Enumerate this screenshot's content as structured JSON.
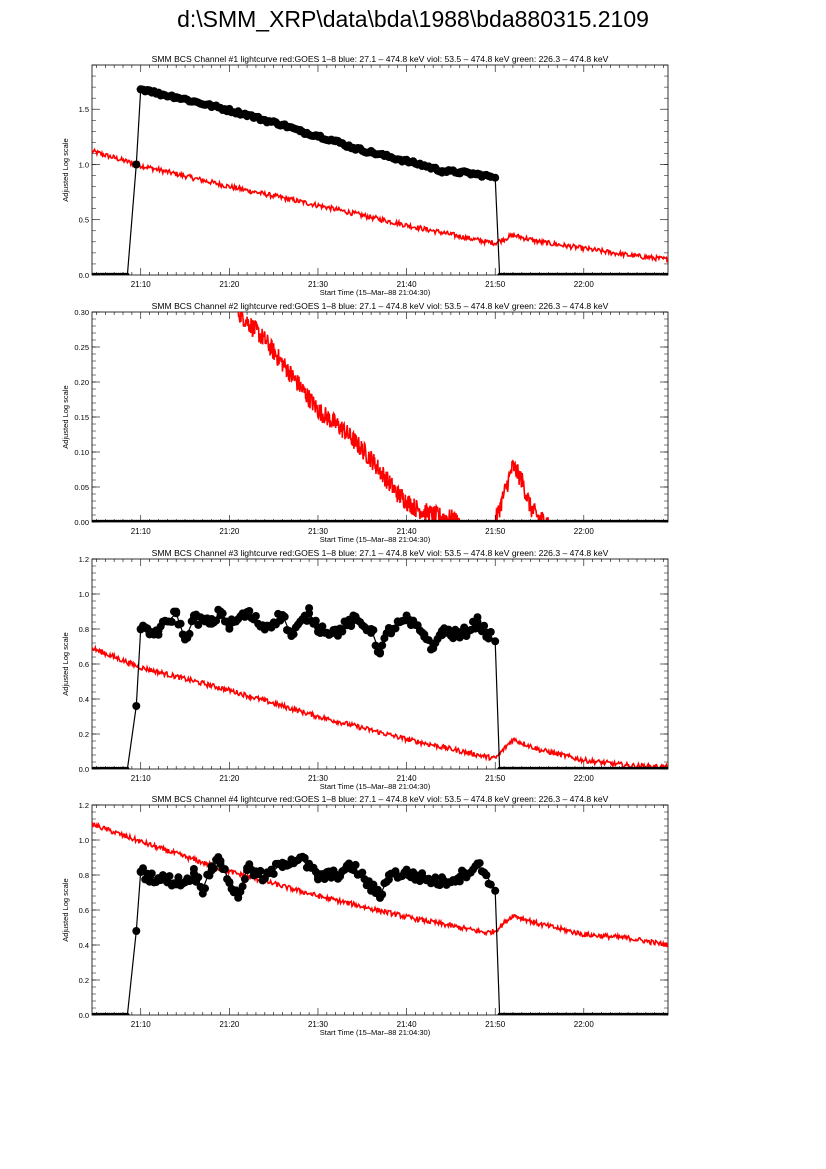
{
  "page": {
    "title": "d:\\SMM_XRP\\data\\bda\\1988\\bda880315.2109"
  },
  "colors": {
    "goes": "#ff0000",
    "bcs": "#000000",
    "axes": "#000000"
  },
  "chart_data": [
    {
      "type": "line",
      "title": "SMM BCS Channel #1 lightcurve  red:GOES 1–8  blue: 27.1 – 474.8 keV  viol: 53.5 – 474.8 keV  green: 226.3 – 474.8 keV",
      "xlabel": "Start Time (15–Mar–88 21:04:30)",
      "ylabel": "Adjusted Log scale",
      "xlim": [
        "21:04:30",
        "22:09:30"
      ],
      "ylim": [
        0,
        1.9
      ],
      "xticks": [
        "21:10",
        "21:20",
        "21:30",
        "21:40",
        "21:50",
        "22:00"
      ],
      "yticks": [
        "0.0",
        "0.5",
        "1.0",
        "1.5"
      ],
      "grid": false,
      "series": [
        {
          "values": [
            {
              "t": "21:04:30",
              "v": 0
            },
            {
              "t": "21:08:30",
              "v": 0
            },
            {
              "t": "21:09:30",
              "v": 1.0
            },
            {
              "t": "21:10:00",
              "v": 1.68
            },
            {
              "t": "21:11:00",
              "v": 1.67
            },
            {
              "t": "21:12:00",
              "v": 1.64
            },
            {
              "t": "21:14:00",
              "v": 1.61
            },
            {
              "t": "21:16:00",
              "v": 1.57
            },
            {
              "t": "21:18:00",
              "v": 1.53
            },
            {
              "t": "21:20:00",
              "v": 1.49
            },
            {
              "t": "21:22:00",
              "v": 1.45
            },
            {
              "t": "21:24:00",
              "v": 1.4
            },
            {
              "t": "21:26:00",
              "v": 1.36
            },
            {
              "t": "21:28:00",
              "v": 1.3
            },
            {
              "t": "21:30:00",
              "v": 1.26
            },
            {
              "t": "21:32:00",
              "v": 1.21
            },
            {
              "t": "21:34:00",
              "v": 1.15
            },
            {
              "t": "21:36:00",
              "v": 1.11
            },
            {
              "t": "21:38:00",
              "v": 1.07
            },
            {
              "t": "21:40:00",
              "v": 1.03
            },
            {
              "t": "21:42:00",
              "v": 0.99
            },
            {
              "t": "21:44:00",
              "v": 0.94
            },
            {
              "t": "21:46:00",
              "v": 0.93
            },
            {
              "t": "21:48:00",
              "v": 0.91
            },
            {
              "t": "21:49:30",
              "v": 0.89
            },
            {
              "t": "21:50:00",
              "v": 0.88
            },
            {
              "t": "21:50:30",
              "v": 0
            },
            {
              "t": "22:09:30",
              "v": 0
            }
          ]
        },
        {
          "values": [
            {
              "t": "21:04:30",
              "v": 1.12
            },
            {
              "t": "21:10:00",
              "v": 0.99
            },
            {
              "t": "21:20:00",
              "v": 0.8
            },
            {
              "t": "21:30:00",
              "v": 0.63
            },
            {
              "t": "21:40:00",
              "v": 0.45
            },
            {
              "t": "21:49:00",
              "v": 0.3
            },
            {
              "t": "21:50:00",
              "v": 0.29
            },
            {
              "t": "21:52:00",
              "v": 0.36
            },
            {
              "t": "21:55:00",
              "v": 0.3
            },
            {
              "t": "22:00:00",
              "v": 0.24
            },
            {
              "t": "22:05:00",
              "v": 0.18
            },
            {
              "t": "22:09:30",
              "v": 0.14
            }
          ]
        }
      ]
    },
    {
      "type": "line",
      "title": "SMM BCS Channel #2 lightcurve  red:GOES 1–8  blue: 27.1 – 474.8 keV  viol: 53.5 – 474.8 keV  green: 226.3 – 474.8 keV",
      "xlabel": "Start Time (15–Mar–88 21:04:30)",
      "ylabel": "Adjusted Log scale",
      "xlim": [
        "21:04:30",
        "22:09:30"
      ],
      "ylim": [
        0,
        0.3
      ],
      "xticks": [
        "21:10",
        "21:20",
        "21:30",
        "21:40",
        "21:50",
        "22:00"
      ],
      "yticks": [
        "0.00",
        "0.05",
        "0.10",
        "0.15",
        "0.20",
        "0.25",
        "0.30"
      ],
      "grid": false,
      "series": [
        {
          "values": [
            {
              "t": "21:04:30",
              "v": 0
            },
            {
              "t": "22:09:30",
              "v": 0
            }
          ]
        },
        {
          "values": [
            {
              "t": "21:21:00",
              "v": 0.3
            },
            {
              "t": "21:24:00",
              "v": 0.26
            },
            {
              "t": "21:27:00",
              "v": 0.21
            },
            {
              "t": "21:30:00",
              "v": 0.16
            },
            {
              "t": "21:33:00",
              "v": 0.13
            },
            {
              "t": "21:36:00",
              "v": 0.09
            },
            {
              "t": "21:39:00",
              "v": 0.04
            },
            {
              "t": "21:41:00",
              "v": 0.02
            },
            {
              "t": "21:43:00",
              "v": 0.01
            },
            {
              "t": "21:45:00",
              "v": 0.005
            },
            {
              "t": "21:46:00",
              "v": 0
            },
            {
              "t": "21:50:00",
              "v": 0
            },
            {
              "t": "21:51:00",
              "v": 0.04
            },
            {
              "t": "21:52:00",
              "v": 0.08
            },
            {
              "t": "21:53:00",
              "v": 0.06
            },
            {
              "t": "21:54:00",
              "v": 0.02
            },
            {
              "t": "21:55:00",
              "v": 0.005
            },
            {
              "t": "21:56:00",
              "v": 0
            }
          ]
        }
      ]
    },
    {
      "type": "line",
      "title": "SMM BCS Channel #3 lightcurve  red:GOES 1–8  blue: 27.1 – 474.8 keV  viol: 53.5 – 474.8 keV  green: 226.3 – 474.8 keV",
      "xlabel": "Start Time (15–Mar–88 21:04:30)",
      "ylabel": "Adjusted Log scale",
      "xlim": [
        "21:04:30",
        "22:09:30"
      ],
      "ylim": [
        0,
        1.2
      ],
      "xticks": [
        "21:10",
        "21:20",
        "21:30",
        "21:40",
        "21:50",
        "22:00"
      ],
      "yticks": [
        "0.0",
        "0.2",
        "0.4",
        "0.6",
        "0.8",
        "1.0",
        "1.2"
      ],
      "grid": false,
      "series": [
        {
          "values": [
            {
              "t": "21:04:30",
              "v": 0
            },
            {
              "t": "21:08:30",
              "v": 0
            },
            {
              "t": "21:09:30",
              "v": 0.36
            },
            {
              "t": "21:10:00",
              "v": 0.8
            },
            {
              "t": "21:11:00",
              "v": 0.77
            },
            {
              "t": "21:12:00",
              "v": 0.79
            },
            {
              "t": "21:14:00",
              "v": 0.89
            },
            {
              "t": "21:15:00",
              "v": 0.74
            },
            {
              "t": "21:16:00",
              "v": 0.86
            },
            {
              "t": "21:18:00",
              "v": 0.83
            },
            {
              "t": "21:19:00",
              "v": 0.9
            },
            {
              "t": "21:20:00",
              "v": 0.82
            },
            {
              "t": "21:22:00",
              "v": 0.89
            },
            {
              "t": "21:24:00",
              "v": 0.81
            },
            {
              "t": "21:26:00",
              "v": 0.88
            },
            {
              "t": "21:27:00",
              "v": 0.76
            },
            {
              "t": "21:29:00",
              "v": 0.89
            },
            {
              "t": "21:30:00",
              "v": 0.81
            },
            {
              "t": "21:32:00",
              "v": 0.78
            },
            {
              "t": "21:34:00",
              "v": 0.85
            },
            {
              "t": "21:36:00",
              "v": 0.8
            },
            {
              "t": "21:37:00",
              "v": 0.66
            },
            {
              "t": "21:38:00",
              "v": 0.79
            },
            {
              "t": "21:40:00",
              "v": 0.85
            },
            {
              "t": "21:42:00",
              "v": 0.77
            },
            {
              "t": "21:43:00",
              "v": 0.69
            },
            {
              "t": "21:44:00",
              "v": 0.79
            },
            {
              "t": "21:46:00",
              "v": 0.76
            },
            {
              "t": "21:48:00",
              "v": 0.84
            },
            {
              "t": "21:49:00",
              "v": 0.78
            },
            {
              "t": "21:50:00",
              "v": 0.73
            },
            {
              "t": "21:50:30",
              "v": 0
            },
            {
              "t": "22:09:30",
              "v": 0
            }
          ]
        },
        {
          "values": [
            {
              "t": "21:04:30",
              "v": 0.69
            },
            {
              "t": "21:10:00",
              "v": 0.58
            },
            {
              "t": "21:20:00",
              "v": 0.45
            },
            {
              "t": "21:30:00",
              "v": 0.3
            },
            {
              "t": "21:40:00",
              "v": 0.17
            },
            {
              "t": "21:49:00",
              "v": 0.07
            },
            {
              "t": "21:50:00",
              "v": 0.06
            },
            {
              "t": "21:52:00",
              "v": 0.17
            },
            {
              "t": "21:55:00",
              "v": 0.11
            },
            {
              "t": "22:00:00",
              "v": 0.05
            },
            {
              "t": "22:05:00",
              "v": 0.02
            },
            {
              "t": "22:09:30",
              "v": 0.01
            }
          ]
        }
      ]
    },
    {
      "type": "line",
      "title": "SMM BCS Channel #4 lightcurve  red:GOES 1–8  blue: 27.1 – 474.8 keV  viol: 53.5 – 474.8 keV  green: 226.3 – 474.8 keV",
      "xlabel": "Start Time (15–Mar–88 21:04:30)",
      "ylabel": "Adjusted Log scale",
      "xlim": [
        "21:04:30",
        "22:09:30"
      ],
      "ylim": [
        0,
        1.2
      ],
      "xticks": [
        "21:10",
        "21:20",
        "21:30",
        "21:40",
        "21:50",
        "22:00"
      ],
      "yticks": [
        "0.0",
        "0.2",
        "0.4",
        "0.6",
        "0.8",
        "1.0",
        "1.2"
      ],
      "grid": false,
      "series": [
        {
          "values": [
            {
              "t": "21:04:30",
              "v": 0
            },
            {
              "t": "21:08:30",
              "v": 0
            },
            {
              "t": "21:09:30",
              "v": 0.48
            },
            {
              "t": "21:10:00",
              "v": 0.82
            },
            {
              "t": "21:11:00",
              "v": 0.79
            },
            {
              "t": "21:13:00",
              "v": 0.77
            },
            {
              "t": "21:15:00",
              "v": 0.76
            },
            {
              "t": "21:16:00",
              "v": 0.81
            },
            {
              "t": "21:17:00",
              "v": 0.72
            },
            {
              "t": "21:18:00",
              "v": 0.85
            },
            {
              "t": "21:19:00",
              "v": 0.88
            },
            {
              "t": "21:20:00",
              "v": 0.76
            },
            {
              "t": "21:21:00",
              "v": 0.67
            },
            {
              "t": "21:22:00",
              "v": 0.84
            },
            {
              "t": "21:24:00",
              "v": 0.78
            },
            {
              "t": "21:26:00",
              "v": 0.87
            },
            {
              "t": "21:28:00",
              "v": 0.9
            },
            {
              "t": "21:30:00",
              "v": 0.79
            },
            {
              "t": "21:32:00",
              "v": 0.8
            },
            {
              "t": "21:34:00",
              "v": 0.85
            },
            {
              "t": "21:36:00",
              "v": 0.73
            },
            {
              "t": "21:37:00",
              "v": 0.68
            },
            {
              "t": "21:38:00",
              "v": 0.8
            },
            {
              "t": "21:40:00",
              "v": 0.81
            },
            {
              "t": "21:42:00",
              "v": 0.78
            },
            {
              "t": "21:44:00",
              "v": 0.76
            },
            {
              "t": "21:46:00",
              "v": 0.79
            },
            {
              "t": "21:48:00",
              "v": 0.86
            },
            {
              "t": "21:49:00",
              "v": 0.8
            },
            {
              "t": "21:50:00",
              "v": 0.71
            },
            {
              "t": "21:50:30",
              "v": 0
            },
            {
              "t": "22:09:30",
              "v": 0
            }
          ]
        },
        {
          "values": [
            {
              "t": "21:04:30",
              "v": 1.09
            },
            {
              "t": "21:10:00",
              "v": 0.99
            },
            {
              "t": "21:20:00",
              "v": 0.82
            },
            {
              "t": "21:30:00",
              "v": 0.68
            },
            {
              "t": "21:40:00",
              "v": 0.56
            },
            {
              "t": "21:49:00",
              "v": 0.47
            },
            {
              "t": "21:50:00",
              "v": 0.48
            },
            {
              "t": "21:52:00",
              "v": 0.57
            },
            {
              "t": "21:55:00",
              "v": 0.52
            },
            {
              "t": "22:00:00",
              "v": 0.46
            },
            {
              "t": "22:05:00",
              "v": 0.44
            },
            {
              "t": "22:09:30",
              "v": 0.4
            }
          ]
        }
      ]
    }
  ]
}
